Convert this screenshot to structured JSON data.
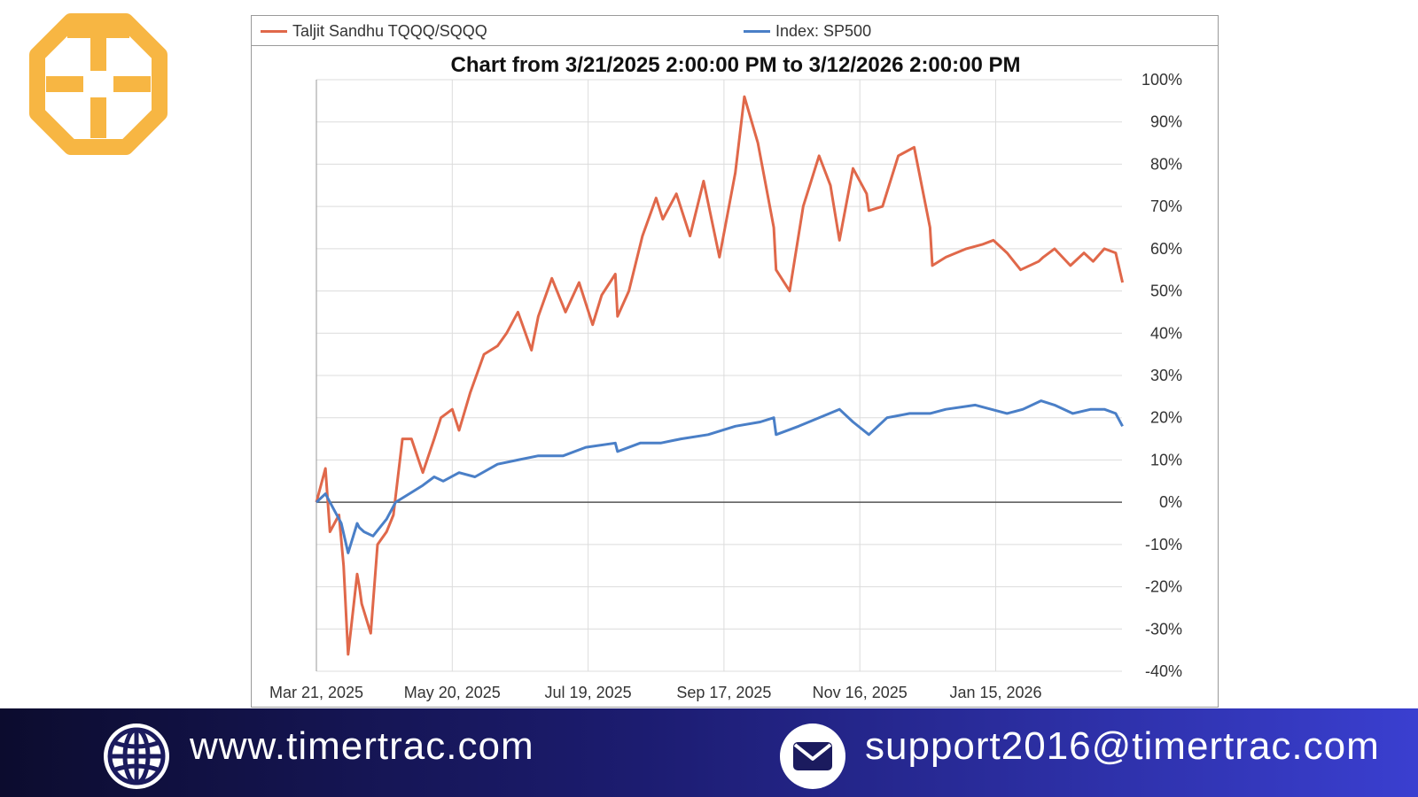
{
  "footer": {
    "website": "www.timertrac.com",
    "email": "support2016@timertrac.com"
  },
  "colors": {
    "strategy": "#e0684a",
    "index": "#4a7fc7",
    "logo": "#f7b643",
    "footer_dark": "#0c0c2e",
    "footer_light": "#3a3fd0"
  },
  "icons": {
    "logo": "timertrac-logo-icon",
    "website": "globe-icon",
    "email": "envelope-icon"
  },
  "chart_data": {
    "type": "line",
    "title": "Chart from 3/21/2025 2:00:00 PM to 3/12/2026 2:00:00 PM",
    "x_tick_labels": [
      "Mar 21, 2025",
      "May 20, 2025",
      "Jul 19, 2025",
      "Sep 17, 2025",
      "Nov 16, 2025",
      "Jan 15, 2026"
    ],
    "y_tick_labels": [
      "100%",
      "90%",
      "80%",
      "70%",
      "60%",
      "50%",
      "40%",
      "30%",
      "20%",
      "10%",
      "0%",
      "-10%",
      "-20%",
      "-30%",
      "-40%"
    ],
    "ylim": [
      -40,
      100
    ],
    "grid": true,
    "legend_position": "top",
    "series": [
      {
        "name": "Taljit Sandhu TQQQ/SQQQ",
        "x": [
          "2025-03-21",
          "2025-03-25",
          "2025-03-27",
          "2025-03-31",
          "2025-04-02",
          "2025-04-04",
          "2025-04-08",
          "2025-04-09",
          "2025-04-10",
          "2025-04-14",
          "2025-04-17",
          "2025-04-21",
          "2025-04-24",
          "2025-04-28",
          "2025-05-02",
          "2025-05-07",
          "2025-05-12",
          "2025-05-15",
          "2025-05-20",
          "2025-05-23",
          "2025-05-28",
          "2025-06-03",
          "2025-06-09",
          "2025-06-13",
          "2025-06-18",
          "2025-06-24",
          "2025-06-27",
          "2025-07-03",
          "2025-07-09",
          "2025-07-15",
          "2025-07-21",
          "2025-07-25",
          "2025-07-31",
          "2025-08-01",
          "2025-08-06",
          "2025-08-12",
          "2025-08-18",
          "2025-08-21",
          "2025-08-27",
          "2025-09-02",
          "2025-09-08",
          "2025-09-15",
          "2025-09-22",
          "2025-09-26",
          "2025-10-02",
          "2025-10-09",
          "2025-10-10",
          "2025-10-16",
          "2025-10-22",
          "2025-10-29",
          "2025-11-03",
          "2025-11-07",
          "2025-11-13",
          "2025-11-19",
          "2025-11-20",
          "2025-11-26",
          "2025-12-03",
          "2025-12-10",
          "2025-12-17",
          "2025-12-18",
          "2025-12-24",
          "2026-01-02",
          "2026-01-09",
          "2026-01-14",
          "2026-01-20",
          "2026-01-26",
          "2026-02-03",
          "2026-02-05",
          "2026-02-10",
          "2026-02-17",
          "2026-02-23",
          "2026-02-27",
          "2026-03-04",
          "2026-03-09",
          "2026-03-12"
        ],
        "values": [
          0,
          8,
          -7,
          -3,
          -15,
          -36,
          -17,
          -20,
          -24,
          -31,
          -10,
          -7,
          -3,
          15,
          15,
          7,
          15,
          20,
          22,
          17,
          26,
          35,
          37,
          40,
          45,
          36,
          44,
          53,
          45,
          52,
          42,
          49,
          54,
          44,
          50,
          63,
          72,
          67,
          73,
          63,
          76,
          58,
          78,
          96,
          85,
          65,
          55,
          50,
          70,
          82,
          75,
          62,
          79,
          73,
          69,
          70,
          82,
          84,
          65,
          56,
          58,
          60,
          61,
          62,
          59,
          55,
          57,
          58,
          60,
          56,
          59,
          57,
          60,
          59,
          52
        ]
      },
      {
        "name": "Index: SP500",
        "x": [
          "2025-03-21",
          "2025-03-25",
          "2025-03-28",
          "2025-04-01",
          "2025-04-04",
          "2025-04-08",
          "2025-04-09",
          "2025-04-11",
          "2025-04-15",
          "2025-04-21",
          "2025-04-25",
          "2025-05-01",
          "2025-05-07",
          "2025-05-12",
          "2025-05-16",
          "2025-05-23",
          "2025-05-30",
          "2025-06-09",
          "2025-06-18",
          "2025-06-27",
          "2025-07-08",
          "2025-07-18",
          "2025-07-31",
          "2025-08-01",
          "2025-08-11",
          "2025-08-20",
          "2025-08-29",
          "2025-09-10",
          "2025-09-22",
          "2025-10-03",
          "2025-10-09",
          "2025-10-10",
          "2025-10-20",
          "2025-10-29",
          "2025-11-07",
          "2025-11-13",
          "2025-11-20",
          "2025-11-28",
          "2025-12-08",
          "2025-12-17",
          "2025-12-24",
          "2026-01-06",
          "2026-01-13",
          "2026-01-20",
          "2026-01-27",
          "2026-02-04",
          "2026-02-10",
          "2026-02-18",
          "2026-02-26",
          "2026-03-04",
          "2026-03-09",
          "2026-03-12"
        ],
        "values": [
          0,
          2,
          -1,
          -5,
          -12,
          -5,
          -6,
          -7,
          -8,
          -4,
          0,
          2,
          4,
          6,
          5,
          7,
          6,
          9,
          10,
          11,
          11,
          13,
          14,
          12,
          14,
          14,
          15,
          16,
          18,
          19,
          20,
          16,
          18,
          20,
          22,
          19,
          16,
          20,
          21,
          21,
          22,
          23,
          22,
          21,
          22,
          24,
          23,
          21,
          22,
          22,
          21,
          18
        ]
      }
    ]
  }
}
